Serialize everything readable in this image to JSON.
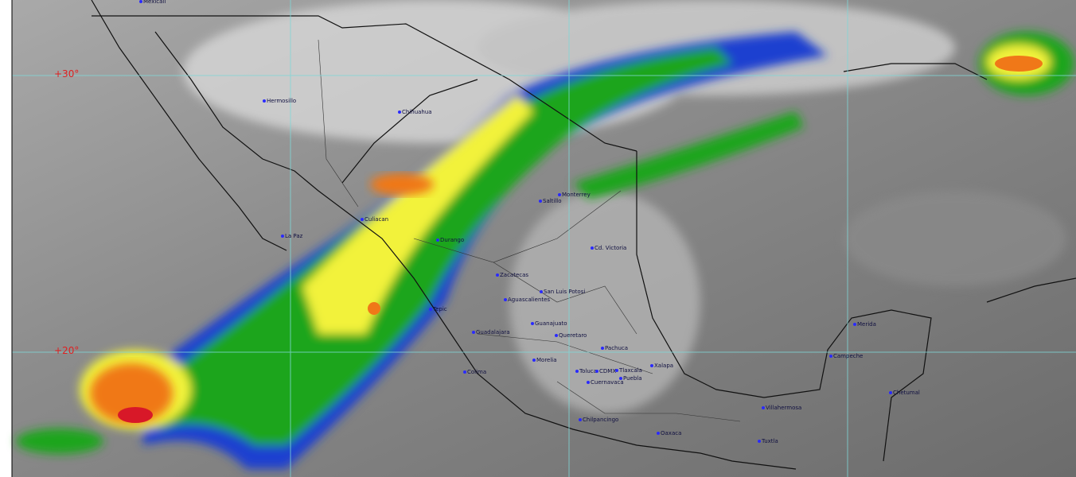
{
  "map": {
    "latitude_labels": [
      "+30°",
      "+20°"
    ],
    "cities": [
      "Mexicali",
      "Hermosillo",
      "Chihuahua",
      "Culiacan",
      "La Paz",
      "Durango",
      "Monterrey",
      "Saltillo",
      "Cd. Victoria",
      "Zacatecas",
      "San Luis Potosi",
      "Aguascalientes",
      "Tepic",
      "Guadalajara",
      "Guanajuato",
      "Queretaro",
      "Pachuca",
      "Morelia",
      "Colima",
      "Toluca",
      "CDMX",
      "Tlaxcala",
      "Puebla",
      "Cuernavaca",
      "Xalapa",
      "Merida",
      "Campeche",
      "Chetumal",
      "Villahermosa",
      "Chilpancingo",
      "Oaxaca",
      "Tuxtla"
    ],
    "colors": {
      "grid": "#7fd8d8",
      "lat_label": "#e02020",
      "city_dot": "#2a2aff",
      "cloud_blue": "#1f3fd0",
      "cloud_green": "#1aa51a",
      "cloud_yellow": "#f2f23a",
      "cloud_orange": "#f07818",
      "cloud_red": "#d81828"
    }
  }
}
